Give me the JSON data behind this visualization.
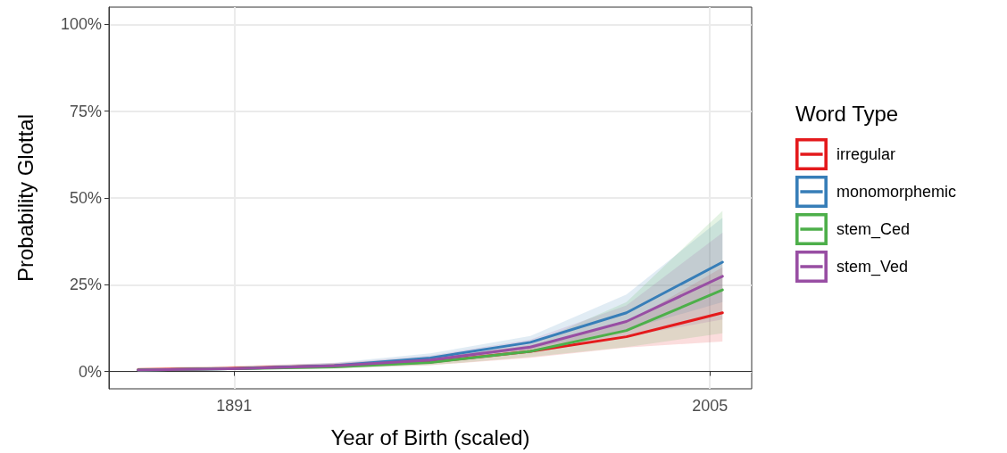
{
  "chart_data": {
    "type": "line",
    "xlabel": "Year of Birth (scaled)",
    "ylabel": "Probability Glottal",
    "legend_title": "Word Type",
    "legend": "right",
    "grid": true,
    "marker": "none",
    "line_style": "solid",
    "x": [
      1868,
      1891,
      1915,
      1938,
      1962,
      1985,
      2008
    ],
    "xlim": [
      1861,
      2015
    ],
    "xticks": [
      1891,
      2005
    ],
    "ylim": [
      -5,
      105
    ],
    "yticks": [
      {
        "value": 0,
        "label": "0%"
      },
      {
        "value": 25,
        "label": "25%"
      },
      {
        "value": 50,
        "label": "50%"
      },
      {
        "value": 75,
        "label": "75%"
      },
      {
        "value": 100,
        "label": "100%"
      }
    ],
    "series": [
      {
        "name": "irregular",
        "color": "#e41a1c",
        "values": [
          0.5,
          0.9,
          1.6,
          2.7,
          5.8,
          10.0,
          16.9
        ],
        "lower": [
          0.2,
          0.5,
          1.0,
          1.8,
          3.9,
          6.9,
          8.6
        ],
        "upper": [
          1.2,
          1.6,
          2.4,
          3.9,
          7.5,
          14.0,
          30.0
        ]
      },
      {
        "name": "monomorphemic",
        "color": "#377eb8",
        "values": [
          0.4,
          0.8,
          1.7,
          3.9,
          8.4,
          16.9,
          31.5
        ],
        "lower": [
          0.2,
          0.5,
          1.1,
          2.8,
          6.5,
          12.0,
          20.0
        ],
        "upper": [
          0.8,
          1.3,
          2.5,
          5.2,
          10.2,
          22.2,
          44.3
        ]
      },
      {
        "name": "stem_Ced",
        "color": "#4daf4a",
        "values": [
          0.4,
          0.8,
          1.3,
          2.6,
          5.8,
          11.8,
          23.5
        ],
        "lower": [
          0.1,
          0.4,
          0.8,
          1.8,
          4.2,
          7.0,
          11.0
        ],
        "upper": [
          0.9,
          1.4,
          2.1,
          3.6,
          7.8,
          20.0,
          46.3
        ]
      },
      {
        "name": "stem_Ved",
        "color": "#984ea3",
        "values": [
          0.4,
          0.8,
          1.6,
          3.3,
          7.0,
          14.4,
          27.4
        ],
        "lower": [
          0.2,
          0.5,
          1.0,
          2.3,
          5.3,
          10.0,
          15.0
        ],
        "upper": [
          0.8,
          1.3,
          2.4,
          4.6,
          9.2,
          19.0,
          40.0
        ]
      }
    ]
  }
}
